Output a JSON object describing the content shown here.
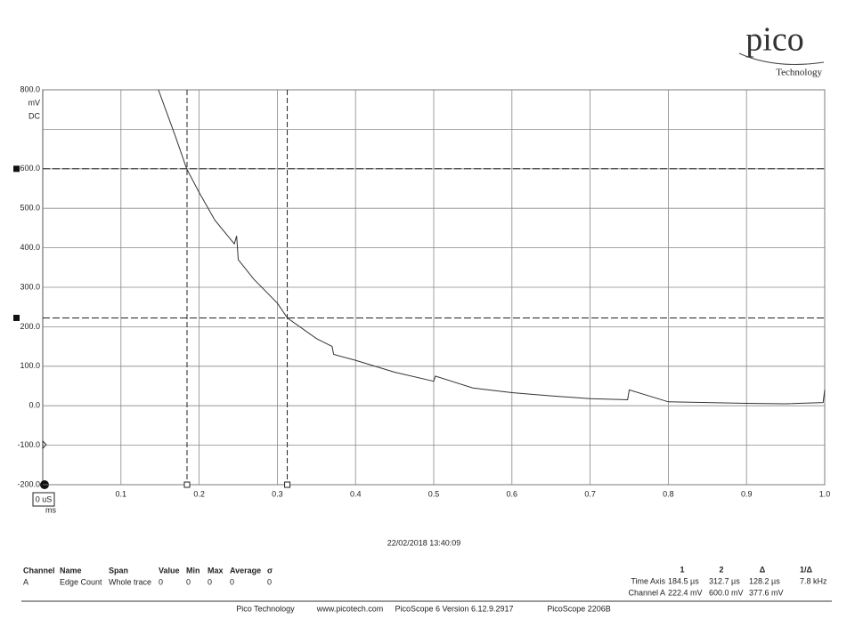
{
  "logo": {
    "name": "pico",
    "sub": "Technology"
  },
  "chart_data": {
    "type": "line",
    "y_unit": "mV",
    "y_coupling": "DC",
    "x_origin_label": "0 uS",
    "x_unit": "ms",
    "x": [
      0.148,
      0.17,
      0.184,
      0.2,
      0.22,
      0.245,
      0.248,
      0.25,
      0.27,
      0.3,
      0.313,
      0.35,
      0.37,
      0.372,
      0.4,
      0.45,
      0.5,
      0.502,
      0.55,
      0.6,
      0.65,
      0.7,
      0.748,
      0.75,
      0.8,
      0.85,
      0.9,
      0.95,
      0.998,
      1.0
    ],
    "series": [
      {
        "name": "Channel A",
        "color": "#333333",
        "values": [
          800,
          680,
          600,
          540,
          470,
          410,
          430,
          370,
          320,
          260,
          222,
          170,
          150,
          130,
          115,
          85,
          62,
          75,
          45,
          33,
          25,
          18,
          15,
          40,
          10,
          8,
          6,
          5,
          8,
          40
        ]
      }
    ],
    "xlim": [
      0,
      1
    ],
    "xticks": [
      0.1,
      0.2,
      0.3,
      0.4,
      0.5,
      0.6,
      0.7,
      0.8,
      0.9,
      {
        "value": 1,
        "label": "1.0"
      }
    ],
    "ylim": [
      -200,
      800
    ],
    "yticks": [
      {
        "value": -200,
        "label": "-200.0"
      },
      {
        "value": -100,
        "label": "-100.0"
      },
      {
        "value": 0,
        "label": "0.0"
      },
      {
        "value": 100,
        "label": "100.0"
      },
      {
        "value": 200,
        "label": "200.0"
      },
      {
        "value": 300,
        "label": "300.0"
      },
      {
        "value": 400,
        "label": "400.0"
      },
      {
        "value": 500,
        "label": "500.0"
      },
      {
        "value": 600,
        "label": "600.0"
      },
      {
        "value": 700,
        "label": null
      },
      {
        "value": 800,
        "label": "800.0"
      }
    ],
    "grid": true,
    "cursors": {
      "x": [
        0.1845,
        0.3127
      ],
      "y": [
        600,
        222.4
      ]
    }
  },
  "timestamp": "22/02/2018 13:40:09",
  "table": {
    "header": [
      "Channel",
      "Name",
      "Span",
      "Value",
      "Min",
      "Max",
      "Average",
      "σ"
    ],
    "rows": [
      [
        "A",
        "Edge Count",
        "Whole trace",
        0,
        0,
        0,
        0,
        0
      ]
    ]
  },
  "cursor_table": {
    "header": [
      "1",
      "2",
      "Δ",
      "1/Δ"
    ],
    "rows": [
      [
        "Time Axis",
        "184.5 µs",
        "312.7 µs",
        "128.2 µs",
        "7.8 kHz"
      ],
      [
        "Channel A",
        "222.4 mV",
        "600.0 mV",
        "377.6 mV"
      ]
    ]
  },
  "footer": [
    "Pico Technology",
    "www.picotech.com",
    "PicoScope 6 Version 6.12.9.2917",
    "PicoScope 2206B"
  ]
}
